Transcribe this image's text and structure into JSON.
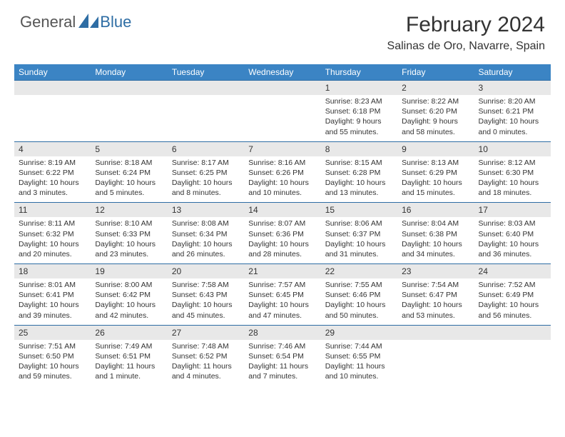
{
  "logo": {
    "general": "General",
    "blue": "Blue"
  },
  "colors": {
    "header_bg": "#3b84c4",
    "border": "#2e6da4",
    "daynum_bg": "#e8e8e8",
    "text": "#333333"
  },
  "title": "February 2024",
  "location": "Salinas de Oro, Navarre, Spain",
  "day_headers": [
    "Sunday",
    "Monday",
    "Tuesday",
    "Wednesday",
    "Thursday",
    "Friday",
    "Saturday"
  ],
  "weeks": [
    [
      null,
      null,
      null,
      null,
      {
        "d": "1",
        "sr": "8:23 AM",
        "ss": "6:18 PM",
        "dl": "9 hours and 55 minutes."
      },
      {
        "d": "2",
        "sr": "8:22 AM",
        "ss": "6:20 PM",
        "dl": "9 hours and 58 minutes."
      },
      {
        "d": "3",
        "sr": "8:20 AM",
        "ss": "6:21 PM",
        "dl": "10 hours and 0 minutes."
      }
    ],
    [
      {
        "d": "4",
        "sr": "8:19 AM",
        "ss": "6:22 PM",
        "dl": "10 hours and 3 minutes."
      },
      {
        "d": "5",
        "sr": "8:18 AM",
        "ss": "6:24 PM",
        "dl": "10 hours and 5 minutes."
      },
      {
        "d": "6",
        "sr": "8:17 AM",
        "ss": "6:25 PM",
        "dl": "10 hours and 8 minutes."
      },
      {
        "d": "7",
        "sr": "8:16 AM",
        "ss": "6:26 PM",
        "dl": "10 hours and 10 minutes."
      },
      {
        "d": "8",
        "sr": "8:15 AM",
        "ss": "6:28 PM",
        "dl": "10 hours and 13 minutes."
      },
      {
        "d": "9",
        "sr": "8:13 AM",
        "ss": "6:29 PM",
        "dl": "10 hours and 15 minutes."
      },
      {
        "d": "10",
        "sr": "8:12 AM",
        "ss": "6:30 PM",
        "dl": "10 hours and 18 minutes."
      }
    ],
    [
      {
        "d": "11",
        "sr": "8:11 AM",
        "ss": "6:32 PM",
        "dl": "10 hours and 20 minutes."
      },
      {
        "d": "12",
        "sr": "8:10 AM",
        "ss": "6:33 PM",
        "dl": "10 hours and 23 minutes."
      },
      {
        "d": "13",
        "sr": "8:08 AM",
        "ss": "6:34 PM",
        "dl": "10 hours and 26 minutes."
      },
      {
        "d": "14",
        "sr": "8:07 AM",
        "ss": "6:36 PM",
        "dl": "10 hours and 28 minutes."
      },
      {
        "d": "15",
        "sr": "8:06 AM",
        "ss": "6:37 PM",
        "dl": "10 hours and 31 minutes."
      },
      {
        "d": "16",
        "sr": "8:04 AM",
        "ss": "6:38 PM",
        "dl": "10 hours and 34 minutes."
      },
      {
        "d": "17",
        "sr": "8:03 AM",
        "ss": "6:40 PM",
        "dl": "10 hours and 36 minutes."
      }
    ],
    [
      {
        "d": "18",
        "sr": "8:01 AM",
        "ss": "6:41 PM",
        "dl": "10 hours and 39 minutes."
      },
      {
        "d": "19",
        "sr": "8:00 AM",
        "ss": "6:42 PM",
        "dl": "10 hours and 42 minutes."
      },
      {
        "d": "20",
        "sr": "7:58 AM",
        "ss": "6:43 PM",
        "dl": "10 hours and 45 minutes."
      },
      {
        "d": "21",
        "sr": "7:57 AM",
        "ss": "6:45 PM",
        "dl": "10 hours and 47 minutes."
      },
      {
        "d": "22",
        "sr": "7:55 AM",
        "ss": "6:46 PM",
        "dl": "10 hours and 50 minutes."
      },
      {
        "d": "23",
        "sr": "7:54 AM",
        "ss": "6:47 PM",
        "dl": "10 hours and 53 minutes."
      },
      {
        "d": "24",
        "sr": "7:52 AM",
        "ss": "6:49 PM",
        "dl": "10 hours and 56 minutes."
      }
    ],
    [
      {
        "d": "25",
        "sr": "7:51 AM",
        "ss": "6:50 PM",
        "dl": "10 hours and 59 minutes."
      },
      {
        "d": "26",
        "sr": "7:49 AM",
        "ss": "6:51 PM",
        "dl": "11 hours and 1 minute."
      },
      {
        "d": "27",
        "sr": "7:48 AM",
        "ss": "6:52 PM",
        "dl": "11 hours and 4 minutes."
      },
      {
        "d": "28",
        "sr": "7:46 AM",
        "ss": "6:54 PM",
        "dl": "11 hours and 7 minutes."
      },
      {
        "d": "29",
        "sr": "7:44 AM",
        "ss": "6:55 PM",
        "dl": "11 hours and 10 minutes."
      },
      null,
      null
    ]
  ],
  "labels": {
    "sunrise": "Sunrise:",
    "sunset": "Sunset:",
    "daylight": "Daylight:"
  }
}
